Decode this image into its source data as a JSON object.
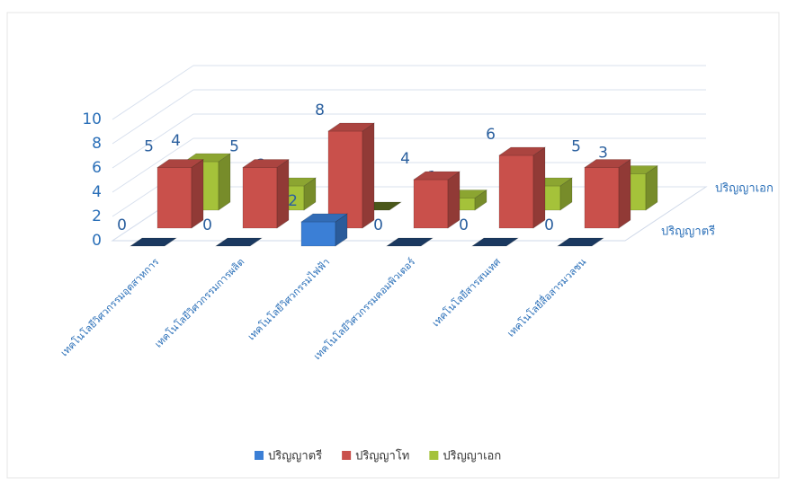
{
  "chart_data": {
    "type": "bar3d",
    "categories": [
      "เทคโนโลยีวิศวกรรมอุตสาหการ",
      "เทคโนโลยีวิศวกรรมการผลิต",
      "เทคโนโลยีวิศวกรรมไฟฟ้า",
      "เทคโนโลยีวิศวกรรมคอมพิวเตอร์",
      "เทคโนโลยีสารสนเทศ",
      "เทคโนโลยีสื่อสารมวลชน"
    ],
    "series": [
      {
        "name": "ปริญญาตรี",
        "color": "#3b7fd6",
        "values": [
          0,
          0,
          2,
          0,
          0,
          0
        ]
      },
      {
        "name": "ปริญญาโท",
        "color": "#c9504b",
        "values": [
          5,
          5,
          8,
          4,
          6,
          5
        ]
      },
      {
        "name": "ปริญญาเอก",
        "color": "#a5c23a",
        "values": [
          4,
          2,
          0,
          1,
          2,
          3
        ]
      }
    ],
    "ylim": [
      0,
      10
    ],
    "yticks": [
      0,
      2,
      4,
      6,
      8,
      10
    ],
    "grid": true,
    "legend": "bottom"
  }
}
